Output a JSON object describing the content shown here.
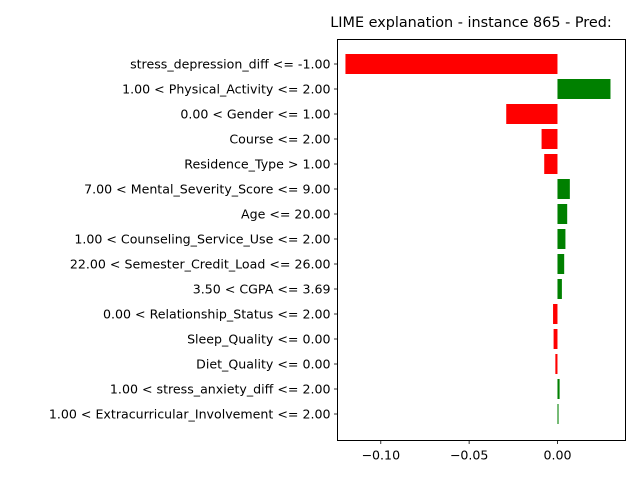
{
  "chart_data": {
    "type": "bar",
    "orientation": "horizontal",
    "title": "LIME explanation - instance 865 - Pred:",
    "xlabel": "",
    "ylabel": "",
    "xlim": [
      -0.1245,
      0.0385
    ],
    "xticks": [
      -0.1,
      -0.05,
      0.0
    ],
    "xtick_labels": [
      "−0.10",
      "−0.05",
      "0.00"
    ],
    "grid": false,
    "colors": {
      "positive": "#008000",
      "negative": "#ff0000"
    },
    "categories": [
      "stress_depression_diff <= -1.00",
      "1.00 < Physical_Activity <= 2.00",
      "0.00 < Gender <= 1.00",
      "Course <= 2.00",
      "Residence_Type > 1.00",
      "7.00 < Mental_Severity_Score <= 9.00",
      "Age <= 20.00",
      "1.00 < Counseling_Service_Use <= 2.00",
      "22.00 < Semester_Credit_Load <= 26.00",
      "3.50 < CGPA <= 3.69",
      "0.00 < Relationship_Status <= 2.00",
      "Sleep_Quality <= 0.00",
      "Diet_Quality <= 0.00",
      "1.00 < stress_anxiety_diff <= 2.00",
      "1.00 < Extracurricular_Involvement <= 2.00"
    ],
    "values": [
      -0.12,
      0.03,
      -0.029,
      -0.009,
      -0.0075,
      0.007,
      0.0055,
      0.0045,
      0.0038,
      0.0025,
      -0.0025,
      -0.0022,
      -0.0012,
      0.0012,
      0.0006
    ]
  }
}
